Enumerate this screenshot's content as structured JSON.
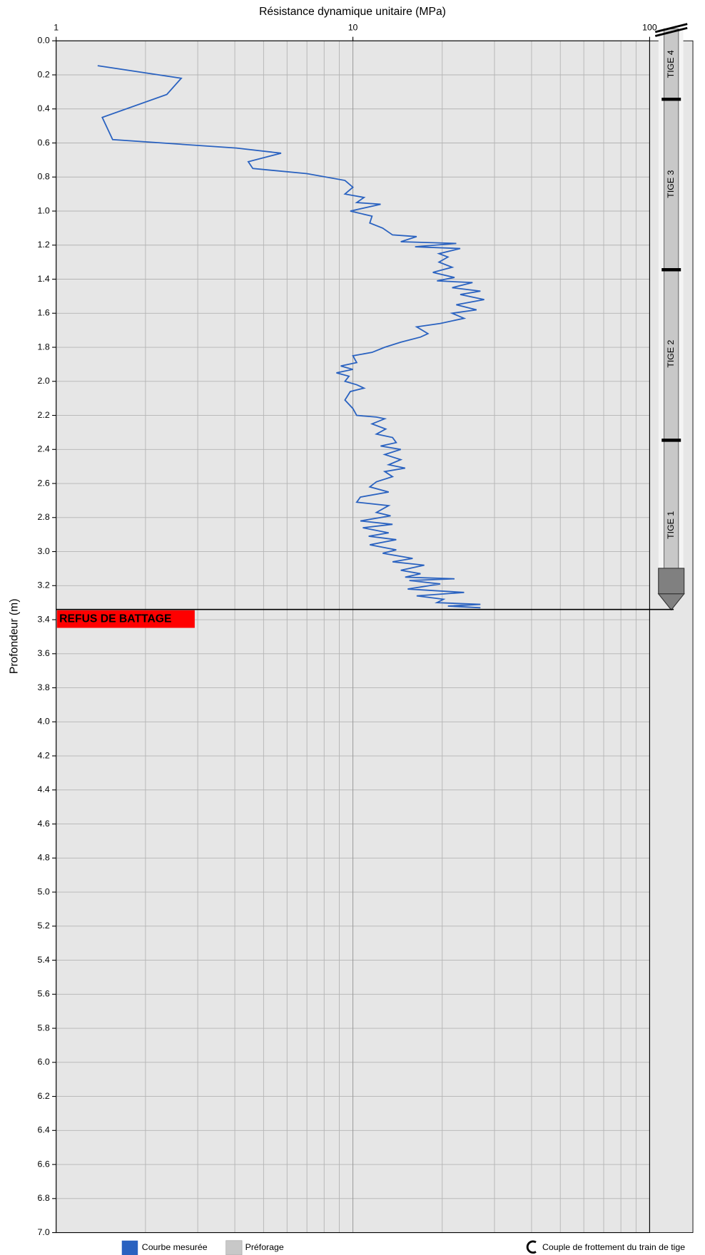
{
  "chart_data": {
    "type": "line",
    "title": "Résistance dynamique unitaire (MPa)",
    "y_label": "Profondeur (m)",
    "x_log": true,
    "xlim": [
      1,
      100
    ],
    "xticks": [
      1,
      10,
      100
    ],
    "xminor_ticks": [
      2,
      3,
      4,
      5,
      6,
      7,
      8,
      9,
      20,
      30,
      40,
      50,
      60,
      70,
      80,
      90
    ],
    "ylim": [
      0,
      7
    ],
    "y_inverted": true,
    "yticks": [
      {
        "value": 0,
        "label": "0.0"
      },
      0.2,
      0.4,
      0.6,
      0.8,
      {
        "value": 1,
        "label": "1.0"
      },
      1.2,
      1.4,
      1.6,
      1.8,
      {
        "value": 2,
        "label": "2.0"
      },
      2.2,
      2.4,
      2.6,
      2.8,
      {
        "value": 3,
        "label": "3.0"
      },
      3.2,
      3.4,
      3.6,
      3.8,
      {
        "value": 4,
        "label": "4.0"
      },
      4.2,
      4.4,
      4.6,
      4.8,
      {
        "value": 5,
        "label": "5.0"
      },
      5.2,
      5.4,
      5.6,
      5.8,
      {
        "value": 6,
        "label": "6.0"
      },
      6.2,
      6.4,
      6.6,
      6.8,
      {
        "value": 7,
        "label": "7.0"
      }
    ],
    "grid": true,
    "series": [
      {
        "name": "Courbe mesurée",
        "color": "#2a62c0",
        "depth": [
          0.146,
          0.22,
          0.315,
          0.45,
          0.58,
          0.63,
          0.66,
          0.71,
          0.75,
          0.78,
          0.82,
          0.86,
          0.9,
          0.92,
          0.95,
          0.96,
          1.0,
          1.03,
          1.07,
          1.1,
          1.14,
          1.15,
          1.18,
          1.19,
          1.21,
          1.22,
          1.25,
          1.27,
          1.3,
          1.33,
          1.36,
          1.39,
          1.41,
          1.42,
          1.45,
          1.47,
          1.49,
          1.52,
          1.55,
          1.58,
          1.6,
          1.63,
          1.66,
          1.68,
          1.72,
          1.74,
          1.77,
          1.8,
          1.83,
          1.85,
          1.89,
          1.91,
          1.93,
          1.95,
          1.97,
          2.0,
          2.02,
          2.04,
          2.06,
          2.11,
          2.16,
          2.2,
          2.21,
          2.22,
          2.25,
          2.28,
          2.31,
          2.33,
          2.36,
          2.38,
          2.4,
          2.43,
          2.46,
          2.49,
          2.51,
          2.53,
          2.56,
          2.59,
          2.62,
          2.65,
          2.68,
          2.71,
          2.73,
          2.77,
          2.79,
          2.82,
          2.84,
          2.86,
          2.89,
          2.91,
          2.93,
          2.96,
          2.99,
          3.01,
          3.04,
          3.06,
          3.08,
          3.11,
          3.13,
          3.15,
          3.16,
          3.17,
          3.19,
          3.22,
          3.24,
          3.26,
          3.28,
          3.3,
          3.31,
          3.32,
          3.33
        ],
        "values": [
          1.38,
          2.64,
          2.36,
          1.43,
          1.55,
          4.05,
          5.73,
          4.44,
          4.6,
          7.0,
          9.4,
          10.0,
          9.4,
          10.9,
          10.3,
          12.4,
          9.8,
          11.6,
          11.4,
          12.6,
          13.6,
          16.4,
          14.5,
          22.3,
          16.2,
          23.0,
          19.5,
          20.9,
          19.5,
          21.6,
          18.6,
          22.0,
          19.2,
          25.3,
          21.6,
          26.9,
          23.0,
          27.7,
          22.3,
          26.1,
          21.6,
          23.7,
          19.7,
          16.4,
          17.9,
          16.9,
          14.5,
          12.8,
          11.6,
          10.0,
          10.3,
          9.1,
          10.0,
          8.8,
          9.7,
          9.4,
          10.3,
          10.9,
          9.8,
          9.4,
          10.0,
          10.3,
          12.0,
          12.8,
          11.6,
          12.9,
          12.0,
          13.6,
          14.0,
          12.4,
          14.5,
          12.8,
          14.5,
          13.2,
          15.0,
          12.8,
          13.6,
          12.0,
          11.4,
          13.2,
          10.6,
          10.3,
          13.2,
          12.0,
          13.4,
          10.6,
          13.6,
          10.8,
          13.2,
          11.3,
          14.0,
          11.4,
          14.0,
          12.6,
          15.9,
          13.6,
          17.4,
          14.5,
          16.9,
          15.0,
          22.0,
          15.5,
          19.7,
          15.3,
          23.7,
          16.4,
          20.2,
          19.2,
          26.9,
          20.9,
          26.9
        ]
      }
    ],
    "refusal_depth": 3.34,
    "refusal_label": "REFUS DE BATTAGE",
    "rods": [
      "TIGE 4",
      "TIGE 3",
      "TIGE 2",
      "TIGE 1"
    ],
    "legend_items": [
      {
        "name": "Préforage",
        "color": "#c8c8c8"
      }
    ],
    "friction_note": "Couple de frottement du train de tige"
  }
}
